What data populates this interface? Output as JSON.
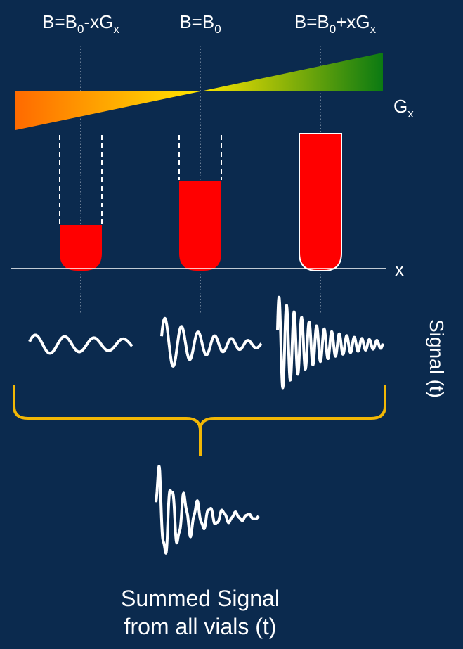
{
  "field_labels": [
    [
      "B=B",
      "0",
      "-xG",
      "x"
    ],
    [
      "B=B",
      "0"
    ],
    [
      "B=B",
      "0",
      "+xG",
      "x"
    ]
  ],
  "gradient_label": [
    "G",
    "x"
  ],
  "axis_label": "x",
  "signal_label": "Signal (t)",
  "summed_label": [
    "Summed Signal",
    "from all vials (t)"
  ]
}
